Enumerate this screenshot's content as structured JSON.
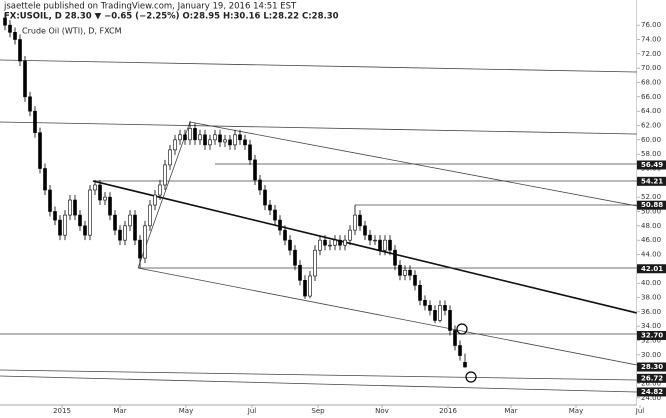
{
  "chart_data": {
    "type": "candlestick",
    "title": "Crude Oil (WTI), D, FXCM",
    "annotations": [
      "jsaettele published on TradingView.com, January 19, 2016 14:51 EST",
      "FX:USOIL, D 28.30 ▼ −0.65 (−2.25%) O:28.95 H:30.16 L:28.22 C:28.30"
    ],
    "open": [
      77,
      76,
      75,
      74,
      71,
      66,
      64,
      61,
      56,
      53,
      50,
      48.8,
      46.7,
      49.5,
      51.6,
      49.5,
      48,
      46.7,
      53,
      53.7,
      51.6,
      52,
      49.5,
      47.4,
      46,
      48,
      49.5,
      46,
      43.5,
      48,
      50.9,
      52.3,
      53.7,
      56.5,
      58.6,
      60,
      60.7,
      60,
      61.6,
      60,
      60.7,
      59.3,
      60,
      60.7,
      59.7,
      60,
      59.3,
      60.7,
      60,
      59.3,
      57.2,
      54.4,
      53,
      50.9,
      50.2,
      48.8,
      47.4,
      46,
      44.6,
      42.5,
      40.4,
      38.2,
      41,
      44.6,
      46,
      45.3,
      45.3,
      46,
      45.3,
      46,
      47.4,
      49.5,
      48,
      46.7,
      46,
      46,
      44.6,
      46,
      44.6,
      42.5,
      41.1,
      41.8,
      41.1,
      39.7,
      37.6,
      36.9,
      36.2,
      34.8,
      36.9,
      36.2,
      33.4,
      31.3,
      28.95
    ],
    "high": [
      77.7,
      76.7,
      75.7,
      74.7,
      71.7,
      66.7,
      64.7,
      61.7,
      56.7,
      53.7,
      50.7,
      49.5,
      50.2,
      52.3,
      52.3,
      50.2,
      48.7,
      53.7,
      54.4,
      54.4,
      52.7,
      52.7,
      50.2,
      48.1,
      48.7,
      50.2,
      50.2,
      46.7,
      48.7,
      51.6,
      53,
      54.4,
      57.2,
      59.3,
      60.7,
      61.4,
      61.4,
      62.6,
      62.3,
      61.4,
      61.4,
      60.7,
      61.4,
      61.4,
      60.7,
      60.7,
      61.4,
      61.4,
      60.7,
      60,
      57.9,
      55.1,
      53.7,
      51.6,
      50.9,
      49.5,
      48.1,
      46.7,
      45.3,
      43.2,
      41.1,
      41.7,
      45.3,
      46.7,
      46.7,
      46,
      46.7,
      46.7,
      46.7,
      48.1,
      50.9,
      50.2,
      48.7,
      47.4,
      46.7,
      46.7,
      46.7,
      46.7,
      45.3,
      43.2,
      42.5,
      42.5,
      41.8,
      40.4,
      38.3,
      37.6,
      36.9,
      37.6,
      37.6,
      36.9,
      34.1,
      32,
      30.16
    ],
    "low": [
      75.3,
      74.3,
      73.3,
      70.3,
      65.3,
      63.3,
      60.3,
      55.3,
      52.3,
      49.3,
      48.1,
      46,
      46,
      48.8,
      48.8,
      47.3,
      46,
      46,
      52.3,
      50.9,
      50.9,
      48.8,
      46.7,
      45.3,
      45.3,
      47.3,
      45.3,
      42.1,
      42.8,
      47.3,
      50.2,
      51.6,
      53,
      55.8,
      57.9,
      59.3,
      59.3,
      59.3,
      59.3,
      59.3,
      58.6,
      58.6,
      59.3,
      59,
      59,
      58.6,
      58.6,
      59.3,
      58.6,
      56.5,
      53.7,
      52.3,
      50.2,
      49.5,
      48.1,
      46.7,
      45.3,
      43.9,
      41.8,
      39.7,
      37.8,
      37.9,
      40.3,
      43.9,
      44.6,
      44.6,
      44.6,
      44.6,
      44.6,
      45.3,
      46.7,
      47.3,
      46,
      45.3,
      45.3,
      43.9,
      43.9,
      43.9,
      41.8,
      40.4,
      40.4,
      40.4,
      39,
      36.9,
      36.2,
      35.5,
      34.4,
      34.5,
      35.5,
      32.7,
      30.6,
      29.2,
      28.22
    ],
    "close": [
      76,
      75,
      74,
      71,
      66,
      64,
      61,
      56,
      53,
      50,
      48.8,
      46.7,
      49.5,
      51.6,
      49.5,
      48,
      46.7,
      53,
      53.7,
      51.6,
      52,
      49.5,
      47.4,
      46,
      48,
      49.5,
      46,
      43.5,
      48,
      50.9,
      52.3,
      53.7,
      56.5,
      58.6,
      60,
      60.7,
      60,
      61.6,
      60,
      60.7,
      59.3,
      60,
      60.7,
      59.7,
      60,
      59.3,
      60.7,
      60,
      59.3,
      57.2,
      54.4,
      53,
      50.9,
      50.2,
      48.8,
      47.4,
      46,
      44.6,
      42.5,
      40.4,
      38.2,
      41,
      44.6,
      46,
      45.3,
      45.3,
      46,
      45.3,
      46,
      47.4,
      49.5,
      48,
      46.7,
      46,
      46,
      44.6,
      46,
      44.6,
      42.5,
      41.1,
      41.8,
      41.1,
      39.7,
      37.6,
      36.9,
      36.2,
      34.8,
      36.9,
      36.2,
      33.4,
      31.3,
      29.9,
      28.3
    ],
    "up_color": "#ffffff",
    "down_color": "#000000",
    "xlim": [
      -1,
      128
    ],
    "xticks": [
      {
        "value": 11.4,
        "label": "2015"
      },
      {
        "value": 23,
        "label": "Mar"
      },
      {
        "value": 36.2,
        "label": "May"
      },
      {
        "value": 49.4,
        "label": "Jul"
      },
      {
        "value": 62.6,
        "label": "Sep"
      },
      {
        "value": 75.4,
        "label": "Nov"
      },
      {
        "value": 88.6,
        "label": "2016"
      },
      {
        "value": 101.2,
        "label": "Mar"
      },
      {
        "value": 114.2,
        "label": "May"
      },
      {
        "value": 127,
        "label": "Jul"
      }
    ],
    "ylim": [
      23,
      77
    ],
    "yticks": [
      {
        "value": 24,
        "label": "24.00"
      },
      {
        "value": 26,
        "label": "26.00"
      },
      {
        "value": 28,
        "label": "28.00"
      },
      {
        "value": 30,
        "label": "30.00"
      },
      {
        "value": 32,
        "label": "32.00"
      },
      {
        "value": 34,
        "label": "34.00"
      },
      {
        "value": 36,
        "label": "36.00"
      },
      {
        "value": 38,
        "label": "38.00"
      },
      {
        "value": 40,
        "label": "40.00"
      },
      {
        "value": 42,
        "label": "42.00"
      },
      {
        "value": 44,
        "label": "44.00"
      },
      {
        "value": 46,
        "label": "46.00"
      },
      {
        "value": 48,
        "label": "48.00"
      },
      {
        "value": 50,
        "label": "50.00"
      },
      {
        "value": 52,
        "label": "52.00"
      },
      {
        "value": 54,
        "label": "54.00"
      },
      {
        "value": 56,
        "label": "56.00"
      },
      {
        "value": 58,
        "label": "58.00"
      },
      {
        "value": 60,
        "label": "60.00"
      },
      {
        "value": 62,
        "label": "62.00"
      },
      {
        "value": 64,
        "label": "64.00"
      },
      {
        "value": 66,
        "label": "66.00"
      },
      {
        "value": 68,
        "label": "68.00"
      },
      {
        "value": 70,
        "label": "70.00"
      },
      {
        "value": 72,
        "label": "72.00"
      },
      {
        "value": 74,
        "label": "74.00"
      },
      {
        "value": 76,
        "label": "76.00"
      }
    ],
    "price_levels": [
      {
        "value": 56.49,
        "label": "56.49"
      },
      {
        "value": 54.21,
        "label": "54.21"
      },
      {
        "value": 50.88,
        "label": "50.88"
      },
      {
        "value": 42.01,
        "label": "42.01"
      },
      {
        "value": 32.7,
        "label": "32.70"
      },
      {
        "value": 28.3,
        "label": "28.30"
      },
      {
        "value": 26.72,
        "label": "26.72"
      },
      {
        "value": 24.82,
        "label": "24.82"
      }
    ]
  }
}
